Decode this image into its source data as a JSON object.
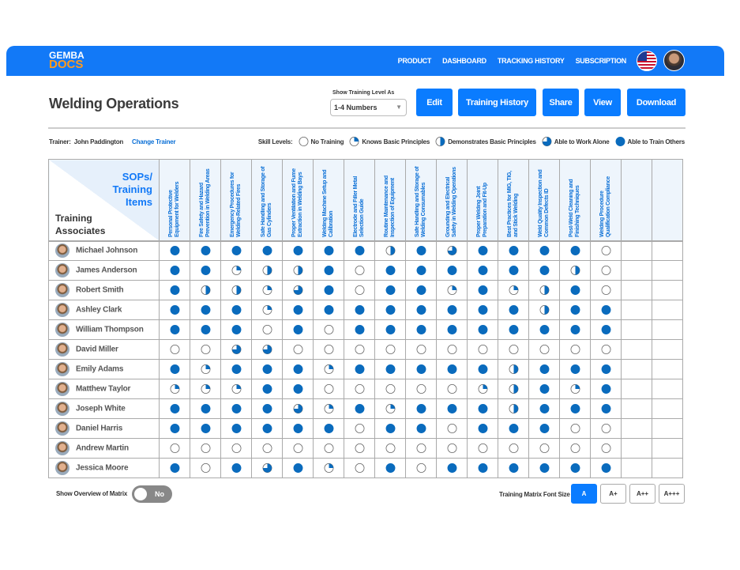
{
  "brand": {
    "line1": "GEMBA",
    "line2": "DOCS"
  },
  "nav": {
    "links": [
      "PRODUCT",
      "DASHBOARD",
      "TRACKING HISTORY",
      "SUBSCRIPTION"
    ]
  },
  "page": {
    "title": "Welding Operations"
  },
  "training_level": {
    "label": "Show Training Level As",
    "value": "1-4 Numbers"
  },
  "actions": {
    "edit": "Edit",
    "history": "Training History",
    "share": "Share",
    "view": "View",
    "download": "Download"
  },
  "trainer": {
    "label": "Trainer:",
    "name": "John Paddington",
    "change": "Change Trainer"
  },
  "legend": {
    "title": "Skill Levels:",
    "items": [
      "No Training",
      "Knows Basic Principles",
      "Demonstrates Basic Principles",
      "Able to Work Alone",
      "Able to Train Others"
    ]
  },
  "colors": {
    "accent": "#0a7cff",
    "nav": "#1279f7",
    "fill": "#0a6bbd",
    "logo_orange": "#ff9a1f"
  },
  "matrix": {
    "corner_top": "SOPs/ Training Items",
    "corner_bottom": "Training Associates",
    "columns": [
      "Personal Protective Equipment  for Welders",
      "Fire Safety and Hazard Prevention in Welding Areas",
      "Emergency Procedures for Welding-Related Fires",
      "Safe Handling and Storage of Gas Cylinders",
      "Proper Ventilation and Fume Extraction in Welding Bays",
      "Welding Machine Setup and Calibration",
      "Electrode and Filler Metal Selection Guide",
      "Routine Maintenance and Inspection of Equipment",
      "Safe Handling and Storage of Welding Consumables",
      "Grounding and Electrical Safety in Welding Operations",
      "Proper Welding Joint Preparation and Fit-Up",
      "Best Practices for MIG, TIG, and Stick Welding",
      "Weld Quality Inspection and Common Defects ID",
      "Post-Weld Cleaning and Finishing Techniques",
      "Welding Procedure Qualification Compliance",
      "",
      ""
    ],
    "rows": [
      {
        "name": "Michael Johnson",
        "levels": [
          4,
          4,
          4,
          4,
          4,
          4,
          4,
          2,
          4,
          3,
          4,
          4,
          4,
          4,
          0
        ]
      },
      {
        "name": "James Anderson",
        "levels": [
          4,
          4,
          1,
          2,
          2,
          4,
          0,
          4,
          4,
          4,
          4,
          4,
          4,
          2,
          0
        ]
      },
      {
        "name": "Robert Smith",
        "levels": [
          4,
          2,
          2,
          1,
          3,
          4,
          0,
          4,
          4,
          1,
          4,
          1,
          2,
          4,
          0
        ]
      },
      {
        "name": "Ashley Clark",
        "levels": [
          4,
          4,
          4,
          1,
          4,
          4,
          4,
          4,
          4,
          4,
          4,
          4,
          2,
          4,
          4
        ]
      },
      {
        "name": "William Thompson",
        "levels": [
          4,
          4,
          4,
          0,
          4,
          0,
          4,
          4,
          4,
          4,
          4,
          4,
          4,
          4,
          4
        ]
      },
      {
        "name": "David Miller",
        "levels": [
          0,
          0,
          3,
          3,
          0,
          0,
          0,
          0,
          0,
          0,
          0,
          0,
          0,
          0,
          0
        ]
      },
      {
        "name": "Emily Adams",
        "levels": [
          4,
          1,
          4,
          4,
          4,
          1,
          4,
          4,
          4,
          4,
          4,
          2,
          4,
          4,
          4
        ]
      },
      {
        "name": "Matthew Taylor",
        "levels": [
          1,
          1,
          1,
          4,
          4,
          0,
          0,
          0,
          0,
          0,
          1,
          2,
          4,
          1,
          4
        ]
      },
      {
        "name": "Joseph White",
        "levels": [
          4,
          4,
          4,
          4,
          3,
          1,
          4,
          1,
          4,
          4,
          4,
          2,
          4,
          4,
          4
        ]
      },
      {
        "name": "Daniel Harris",
        "levels": [
          4,
          4,
          4,
          4,
          4,
          4,
          0,
          4,
          4,
          0,
          4,
          4,
          4,
          0,
          0
        ]
      },
      {
        "name": "Andrew Martin",
        "levels": [
          0,
          0,
          0,
          0,
          0,
          0,
          0,
          0,
          0,
          0,
          0,
          0,
          0,
          0,
          0
        ]
      },
      {
        "name": "Jessica Moore",
        "levels": [
          4,
          0,
          4,
          3,
          4,
          1,
          0,
          4,
          0,
          4,
          4,
          4,
          4,
          4,
          4
        ]
      }
    ]
  },
  "overview": {
    "label": "Show Overview of Matrix",
    "toggle": "No"
  },
  "font_size": {
    "label": "Training Matrix Font Size",
    "options": [
      "A",
      "A+",
      "A++",
      "A+++"
    ],
    "selected": "A"
  }
}
